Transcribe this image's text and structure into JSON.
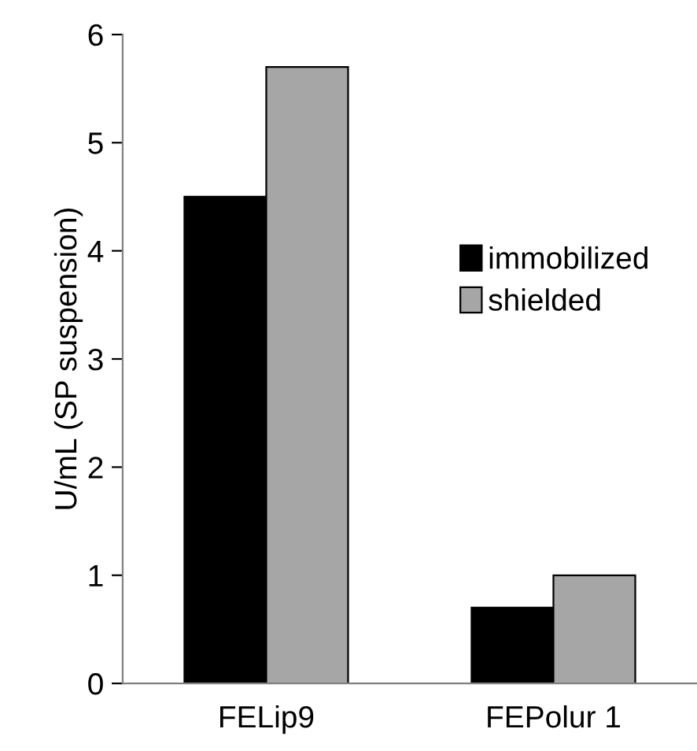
{
  "chart_data": {
    "type": "bar",
    "ylabel": "U/mL (SP suspension)",
    "categories": [
      "FELip9",
      "FEPolur 1"
    ],
    "series": [
      {
        "name": "immobilized",
        "color": "#000000",
        "values": [
          4.5,
          0.7
        ]
      },
      {
        "name": "shielded",
        "color": "#a6a6a6",
        "values": [
          5.7,
          1.0
        ]
      }
    ],
    "ylim": [
      0,
      6
    ],
    "yticks": [
      0,
      1,
      2,
      3,
      4,
      5,
      6
    ],
    "legend": "right"
  }
}
